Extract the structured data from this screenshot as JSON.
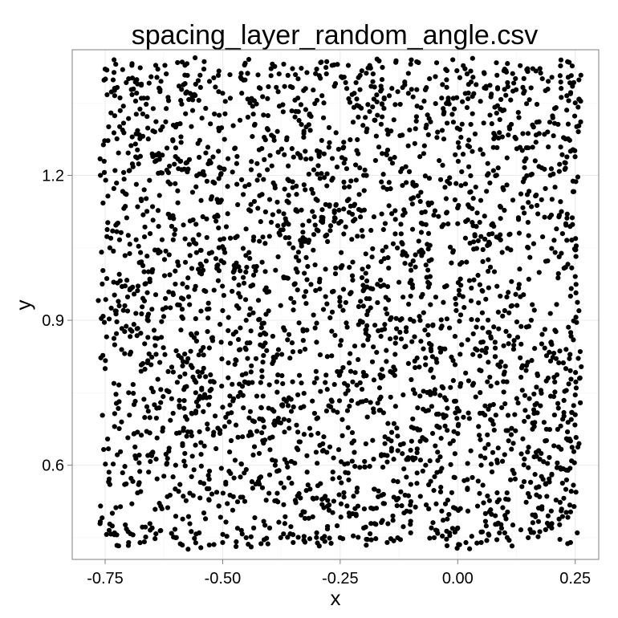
{
  "chart_data": {
    "type": "scatter",
    "title": "spacing_layer_random_angle.csv",
    "xlabel": "x",
    "ylabel": "y",
    "xlim": [
      -0.82,
      0.3
    ],
    "ylim": [
      0.405,
      1.46
    ],
    "x_ticks": [
      -0.75,
      -0.5,
      -0.25,
      0.0,
      0.25
    ],
    "x_tick_labels": [
      "-0.75",
      "-0.50",
      "-0.25",
      "0.00",
      "0.25"
    ],
    "y_ticks": [
      0.6,
      0.9,
      1.2
    ],
    "y_tick_labels": [
      "0.6",
      "0.9",
      "1.2"
    ],
    "grid": true,
    "theme": "bw",
    "point_color": "#000000",
    "point_count_estimate": 3000,
    "x_range_of_points": [
      -0.76,
      0.26
    ],
    "y_range_of_points": [
      0.43,
      1.44
    ],
    "series": [
      {
        "values": [
          [
            -0.75,
            1.42
          ],
          [
            -0.73,
            1.38
          ],
          [
            -0.7,
            1.4
          ],
          [
            -0.66,
            1.36
          ],
          [
            -0.62,
            1.41
          ],
          [
            -0.58,
            1.39
          ],
          [
            -0.54,
            1.42
          ],
          [
            -0.5,
            1.37
          ],
          [
            -0.46,
            1.4
          ],
          [
            -0.42,
            1.38
          ],
          [
            -0.38,
            1.41
          ],
          [
            -0.34,
            1.36
          ],
          [
            -0.3,
            1.42
          ],
          [
            -0.26,
            1.39
          ],
          [
            -0.22,
            1.37
          ],
          [
            -0.18,
            1.41
          ],
          [
            -0.14,
            1.38
          ],
          [
            -0.1,
            1.43
          ],
          [
            -0.06,
            1.4
          ],
          [
            -0.02,
            1.36
          ],
          [
            0.02,
            1.41
          ],
          [
            0.06,
            1.38
          ],
          [
            0.1,
            1.42
          ],
          [
            0.14,
            1.37
          ],
          [
            0.18,
            1.4
          ],
          [
            0.22,
            1.38
          ],
          [
            0.25,
            1.35
          ],
          [
            -0.76,
            1.2
          ],
          [
            -0.74,
            1.05
          ],
          [
            -0.72,
            0.93
          ],
          [
            -0.75,
            0.8
          ],
          [
            -0.73,
            0.68
          ],
          [
            -0.74,
            0.56
          ],
          [
            -0.73,
            0.46
          ],
          [
            -0.7,
            0.44
          ],
          [
            -0.65,
            0.47
          ],
          [
            -0.6,
            0.45
          ],
          [
            -0.55,
            0.46
          ],
          [
            -0.5,
            0.44
          ],
          [
            -0.45,
            0.45
          ],
          [
            -0.4,
            0.47
          ],
          [
            -0.35,
            0.44
          ],
          [
            -0.3,
            0.46
          ],
          [
            -0.25,
            0.45
          ],
          [
            -0.2,
            0.47
          ],
          [
            -0.15,
            0.44
          ],
          [
            -0.1,
            0.46
          ],
          [
            -0.05,
            0.45
          ],
          [
            0.0,
            0.47
          ],
          [
            0.05,
            0.44
          ],
          [
            0.1,
            0.46
          ],
          [
            0.15,
            0.45
          ],
          [
            0.2,
            0.47
          ],
          [
            0.24,
            0.44
          ],
          [
            0.24,
            1.25
          ],
          [
            0.23,
            1.1
          ],
          [
            0.24,
            0.95
          ],
          [
            0.23,
            0.8
          ],
          [
            0.24,
            0.65
          ],
          [
            0.23,
            0.55
          ],
          [
            -0.48,
            0.96
          ],
          [
            -0.47,
            0.93
          ],
          [
            -0.45,
            0.9
          ],
          [
            -0.42,
            0.87
          ],
          [
            -0.5,
            0.92
          ],
          [
            -0.6,
            1.3
          ],
          [
            -0.4,
            1.15
          ],
          [
            -0.2,
            1.2
          ],
          [
            0.0,
            1.1
          ],
          [
            0.15,
            1.05
          ],
          [
            -0.65,
            1.0
          ],
          [
            -0.35,
            1.05
          ],
          [
            -0.1,
            0.95
          ],
          [
            0.1,
            0.92
          ],
          [
            0.2,
            0.85
          ],
          [
            -0.7,
            0.75
          ],
          [
            -0.5,
            0.72
          ],
          [
            -0.3,
            0.78
          ],
          [
            -0.05,
            0.75
          ],
          [
            0.15,
            0.7
          ],
          [
            -0.6,
            0.6
          ],
          [
            -0.4,
            0.58
          ],
          [
            -0.15,
            0.62
          ],
          [
            0.05,
            0.6
          ],
          [
            0.2,
            0.58
          ]
        ]
      }
    ]
  }
}
